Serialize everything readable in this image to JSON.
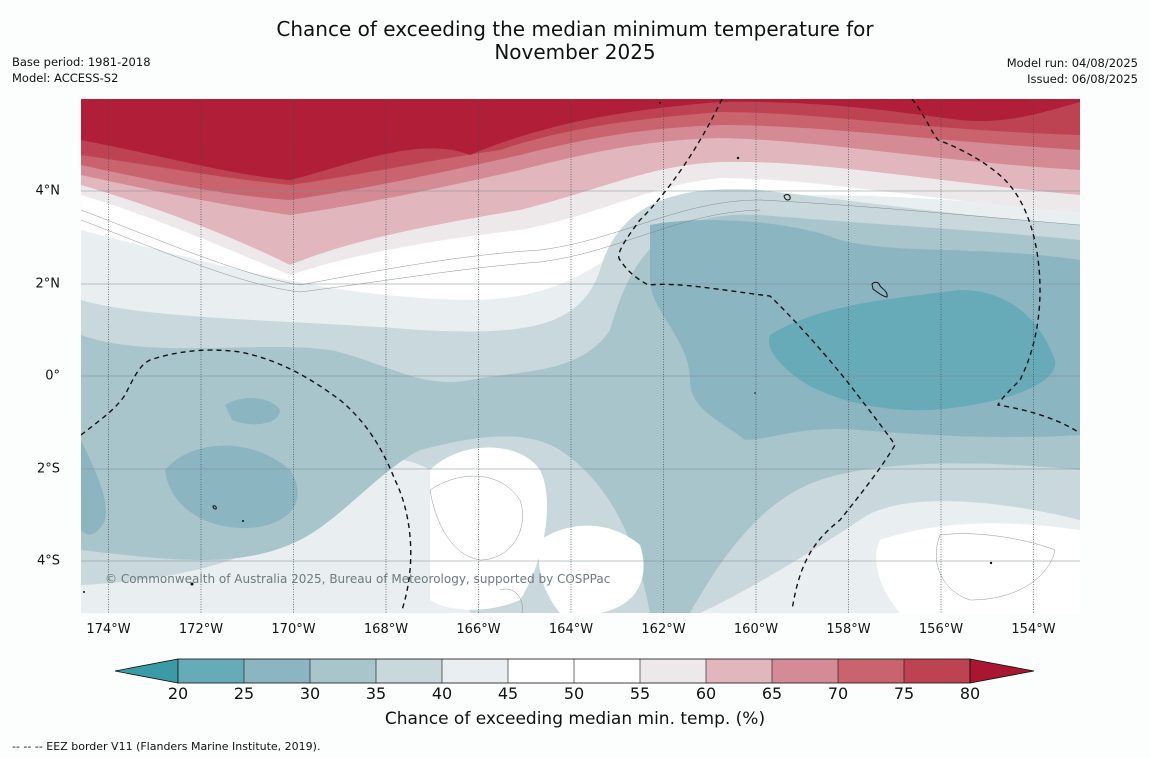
{
  "title": {
    "line1": "Chance of exceeding the median minimum temperature for",
    "line2": "November 2025"
  },
  "meta_left": {
    "base_period": "Base period: 1981-2018",
    "model": "Model: ACCESS-S2"
  },
  "meta_right": {
    "model_run": "Model run: 04/08/2025",
    "issued": "Issued: 06/08/2025"
  },
  "map": {
    "latitude_labels": [
      "4°N",
      "2°N",
      "0°",
      "2°S",
      "4°S"
    ],
    "longitude_labels": [
      "174°W",
      "172°W",
      "170°W",
      "168°W",
      "166°W",
      "164°W",
      "162°W",
      "160°W",
      "158°W",
      "156°W",
      "154°W"
    ],
    "copyright": "© Commonwealth of Australia 2025, Bureau of Meteorology, supported by COSPPac"
  },
  "colorbar": {
    "ticks": [
      "20",
      "25",
      "30",
      "35",
      "40",
      "45",
      "50",
      "55",
      "60",
      "65",
      "70",
      "75",
      "80"
    ],
    "colors": [
      "#3a9aa5",
      "#67abb8",
      "#8cb5c2",
      "#a8c5cc",
      "#c8d8dc",
      "#e9eff1",
      "#ffffff",
      "#ffffff",
      "#ede9ea",
      "#e1b6bd",
      "#d48b96",
      "#c9646f",
      "#bd4353",
      "#a91632"
    ],
    "title": "Chance of exceeding median min. temp. (%)"
  },
  "footnote": "--  --  -- EEZ border V11 (Flanders Marine Institute, 2019)."
}
